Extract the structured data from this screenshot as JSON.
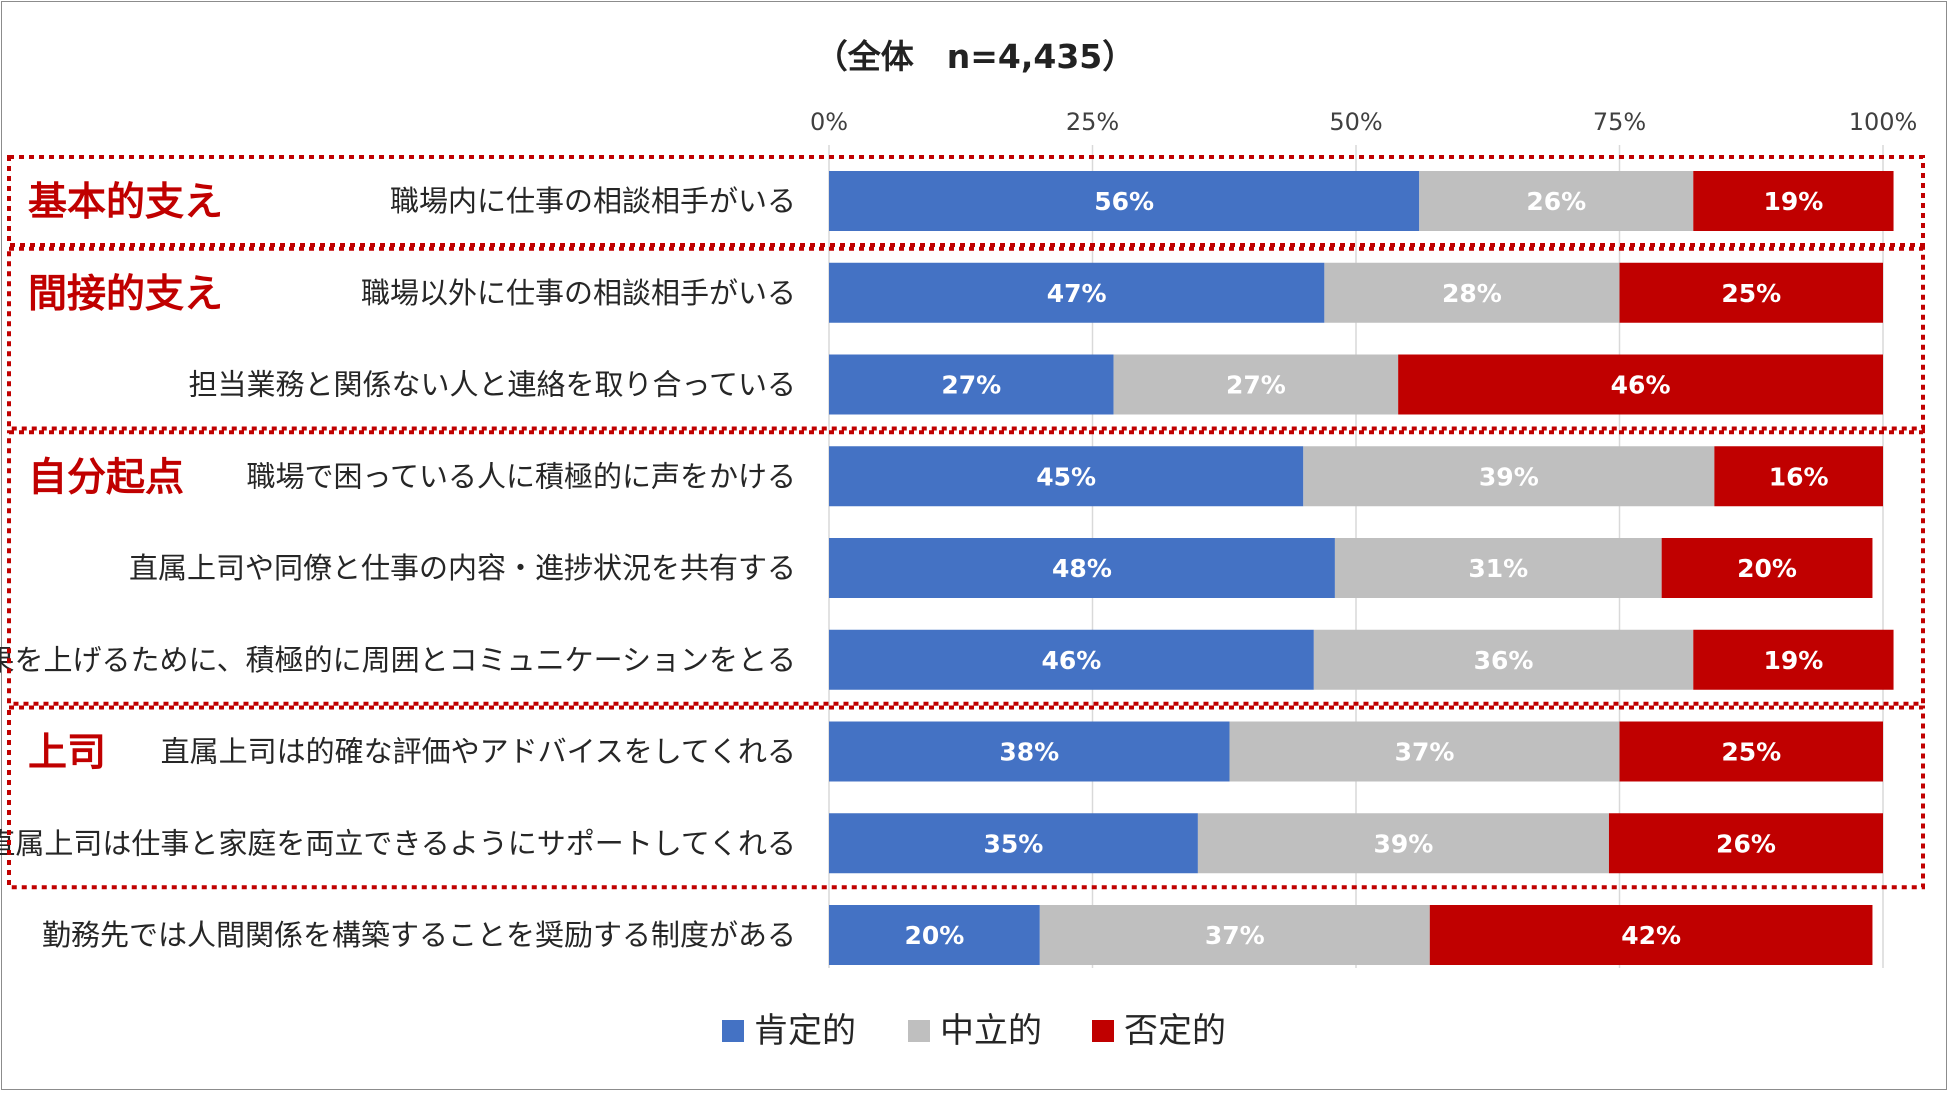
{
  "chart_data": {
    "type": "bar",
    "orientation": "horizontal",
    "stacked": true,
    "title": "（全体　n=4,435）",
    "x_ticks": [
      "0%",
      "25%",
      "50%",
      "75%",
      "100%"
    ],
    "xlim": [
      0,
      100
    ],
    "grid": true,
    "legend_position": "bottom",
    "categories": [
      "職場内に仕事の相談相手がいる",
      "職場以外に仕事の相談相手がいる",
      "担当業務と関係ない人と連絡を取り合っている",
      "職場で困っている人に積極的に声をかける",
      "直属上司や同僚と仕事の内容・進捗状況を共有する",
      "成果を上げるために、積極的に周囲とコミュニケーションをとる",
      "直属上司は的確な評価やアドバイスをしてくれる",
      "直属上司は仕事と家庭を両立できるようにサポートしてくれる",
      "勤務先では人間関係を構築することを奨励する制度がある"
    ],
    "series": [
      {
        "name": "肯定的",
        "color": "#4472c4",
        "values": [
          56,
          47,
          27,
          45,
          48,
          46,
          38,
          35,
          20
        ]
      },
      {
        "name": "中立的",
        "color": "#bfbfbf",
        "values": [
          26,
          28,
          27,
          39,
          31,
          36,
          37,
          39,
          37
        ]
      },
      {
        "name": "否定的",
        "color": "#c00000",
        "values": [
          19,
          25,
          46,
          16,
          20,
          19,
          25,
          26,
          42
        ]
      }
    ],
    "groups": [
      {
        "label": "基本的支え",
        "rows": [
          0,
          0
        ]
      },
      {
        "label": "間接的支え",
        "rows": [
          1,
          2
        ]
      },
      {
        "label": "自分起点",
        "rows": [
          3,
          5
        ]
      },
      {
        "label": "上司",
        "rows": [
          6,
          7
        ]
      }
    ],
    "group_border_color": "#c00000"
  }
}
